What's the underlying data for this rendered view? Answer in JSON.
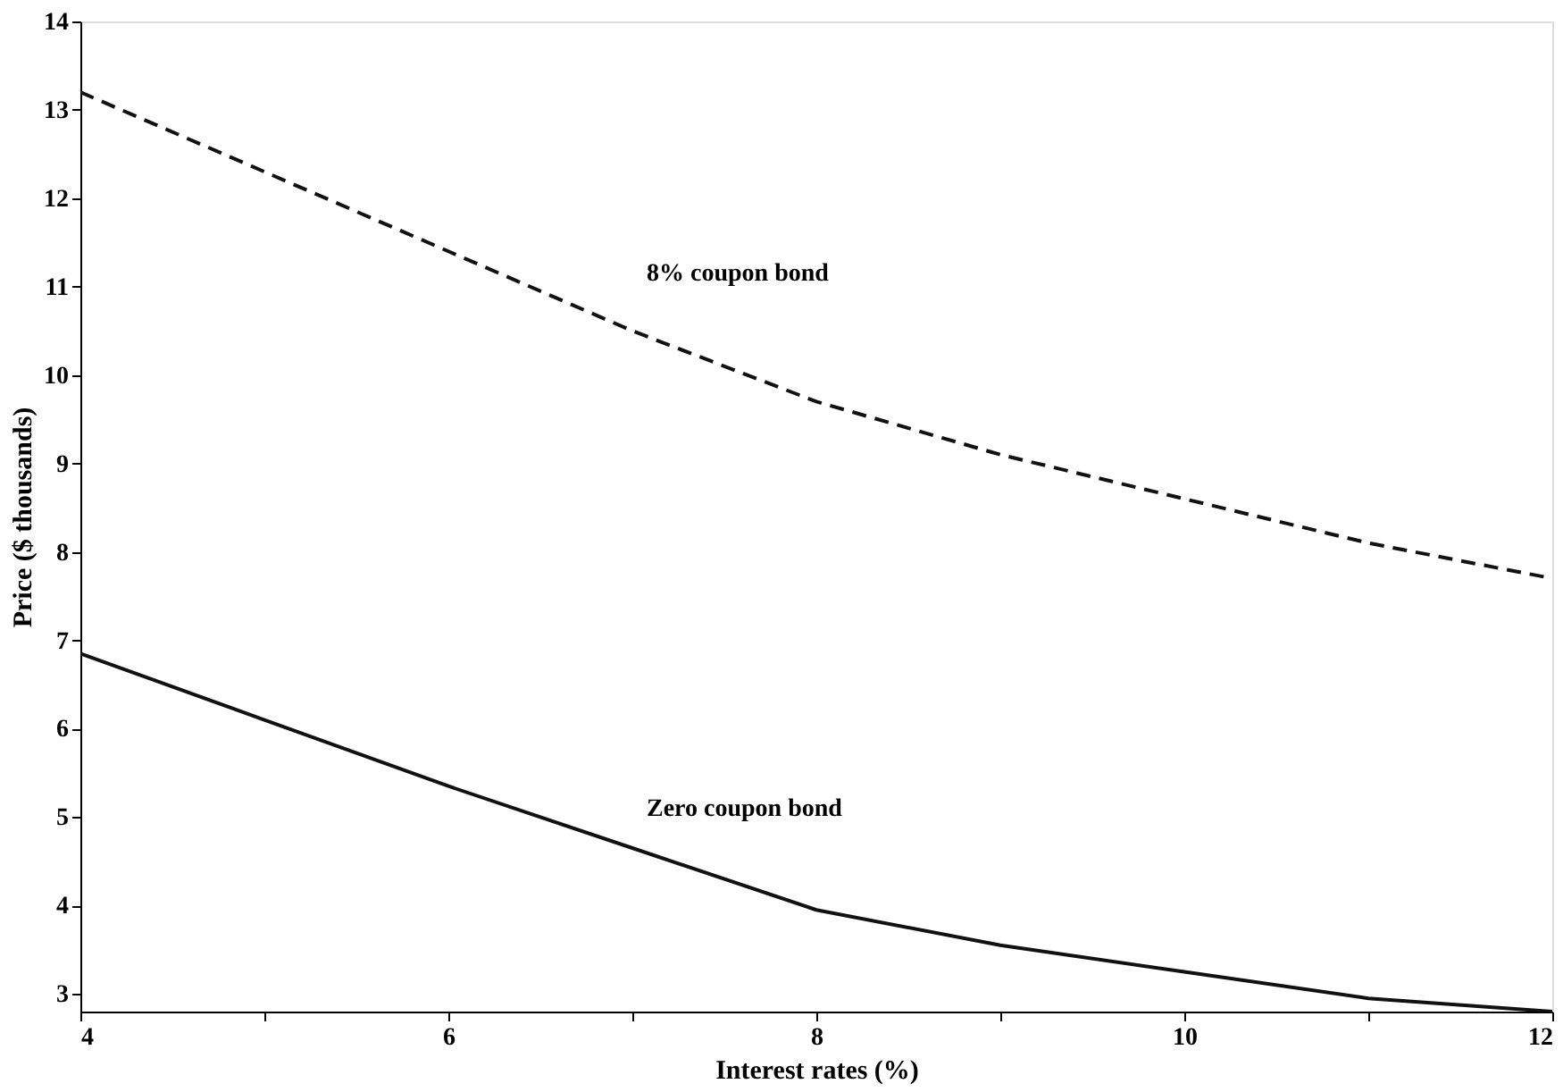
{
  "chart_data": {
    "type": "line",
    "xlabel": "Interest rates (%)",
    "ylabel": "Price ($ thousands)",
    "x": [
      4,
      5,
      6,
      7,
      8,
      9,
      10,
      11,
      12
    ],
    "series": [
      {
        "name": "8% coupon bond",
        "color": "#111111",
        "line_style": "dashed",
        "values": [
          13.2,
          12.3,
          11.4,
          10.5,
          9.7,
          9.1,
          8.6,
          8.1,
          7.7
        ]
      },
      {
        "name": "Zero coupon bond",
        "color": "#111111",
        "line_style": "solid",
        "values": [
          6.85,
          6.1,
          5.35,
          4.65,
          3.95,
          3.55,
          3.25,
          2.95,
          2.8
        ]
      }
    ],
    "xlim": [
      4,
      12
    ],
    "ylim": [
      2.8,
      14
    ],
    "xticks": [
      4,
      {
        "value": 5,
        "label": null
      },
      6,
      {
        "value": 7,
        "label": null
      },
      8,
      {
        "value": 9,
        "label": null
      },
      10,
      {
        "value": 11,
        "label": null
      },
      12
    ],
    "yticks": [
      3,
      4,
      5,
      6,
      7,
      8,
      9,
      10,
      11,
      12,
      13,
      14
    ],
    "grid": false,
    "legend": false,
    "marker": "none"
  }
}
